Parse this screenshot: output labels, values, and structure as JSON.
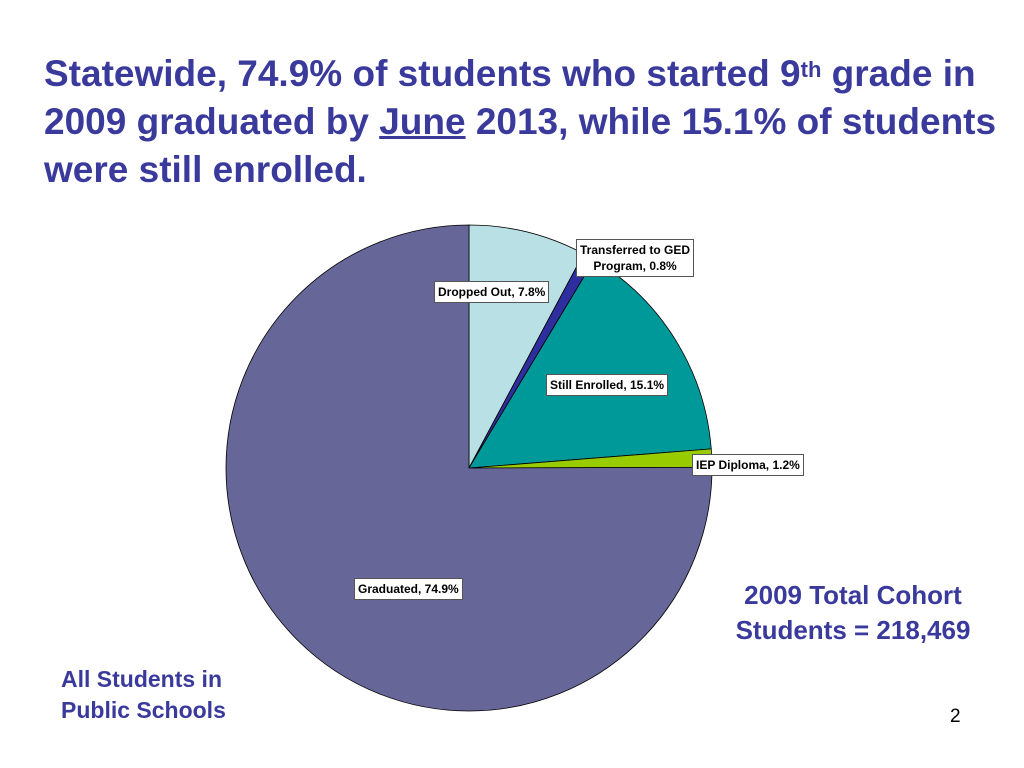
{
  "title": {
    "part1": "Statewide, 74.9% of students who started 9",
    "sup": "th",
    "part2": " grade in 2009 graduated by ",
    "underlined": "June",
    "part3": " 2013, while 15.1%  of students were still enrolled."
  },
  "chart_data": {
    "type": "pie",
    "title": "",
    "slices": [
      {
        "label": "Dropped Out",
        "value": 7.8,
        "display": "Dropped Out, 7.8%",
        "color": "#b9e0e4"
      },
      {
        "label": "Transferred to GED Program",
        "value": 0.8,
        "display_line1": "Transferred to GED",
        "display_line2": "Program, 0.8%",
        "color": "#2e2e9e"
      },
      {
        "label": "Still Enrolled",
        "value": 15.1,
        "display": "Still Enrolled, 15.1%",
        "color": "#009999"
      },
      {
        "label": "IEP Diploma",
        "value": 1.2,
        "display": "IEP Diploma, 1.2%",
        "color": "#99cc00"
      },
      {
        "label": "Graduated",
        "value": 74.9,
        "display": "Graduated, 74.9%",
        "color": "#666699"
      }
    ]
  },
  "cohort": {
    "line1": "2009 Total Cohort",
    "line2": "Students = 218,469"
  },
  "group_label": {
    "line1": "All Students in",
    "line2": "Public Schools"
  },
  "page_number": "2"
}
